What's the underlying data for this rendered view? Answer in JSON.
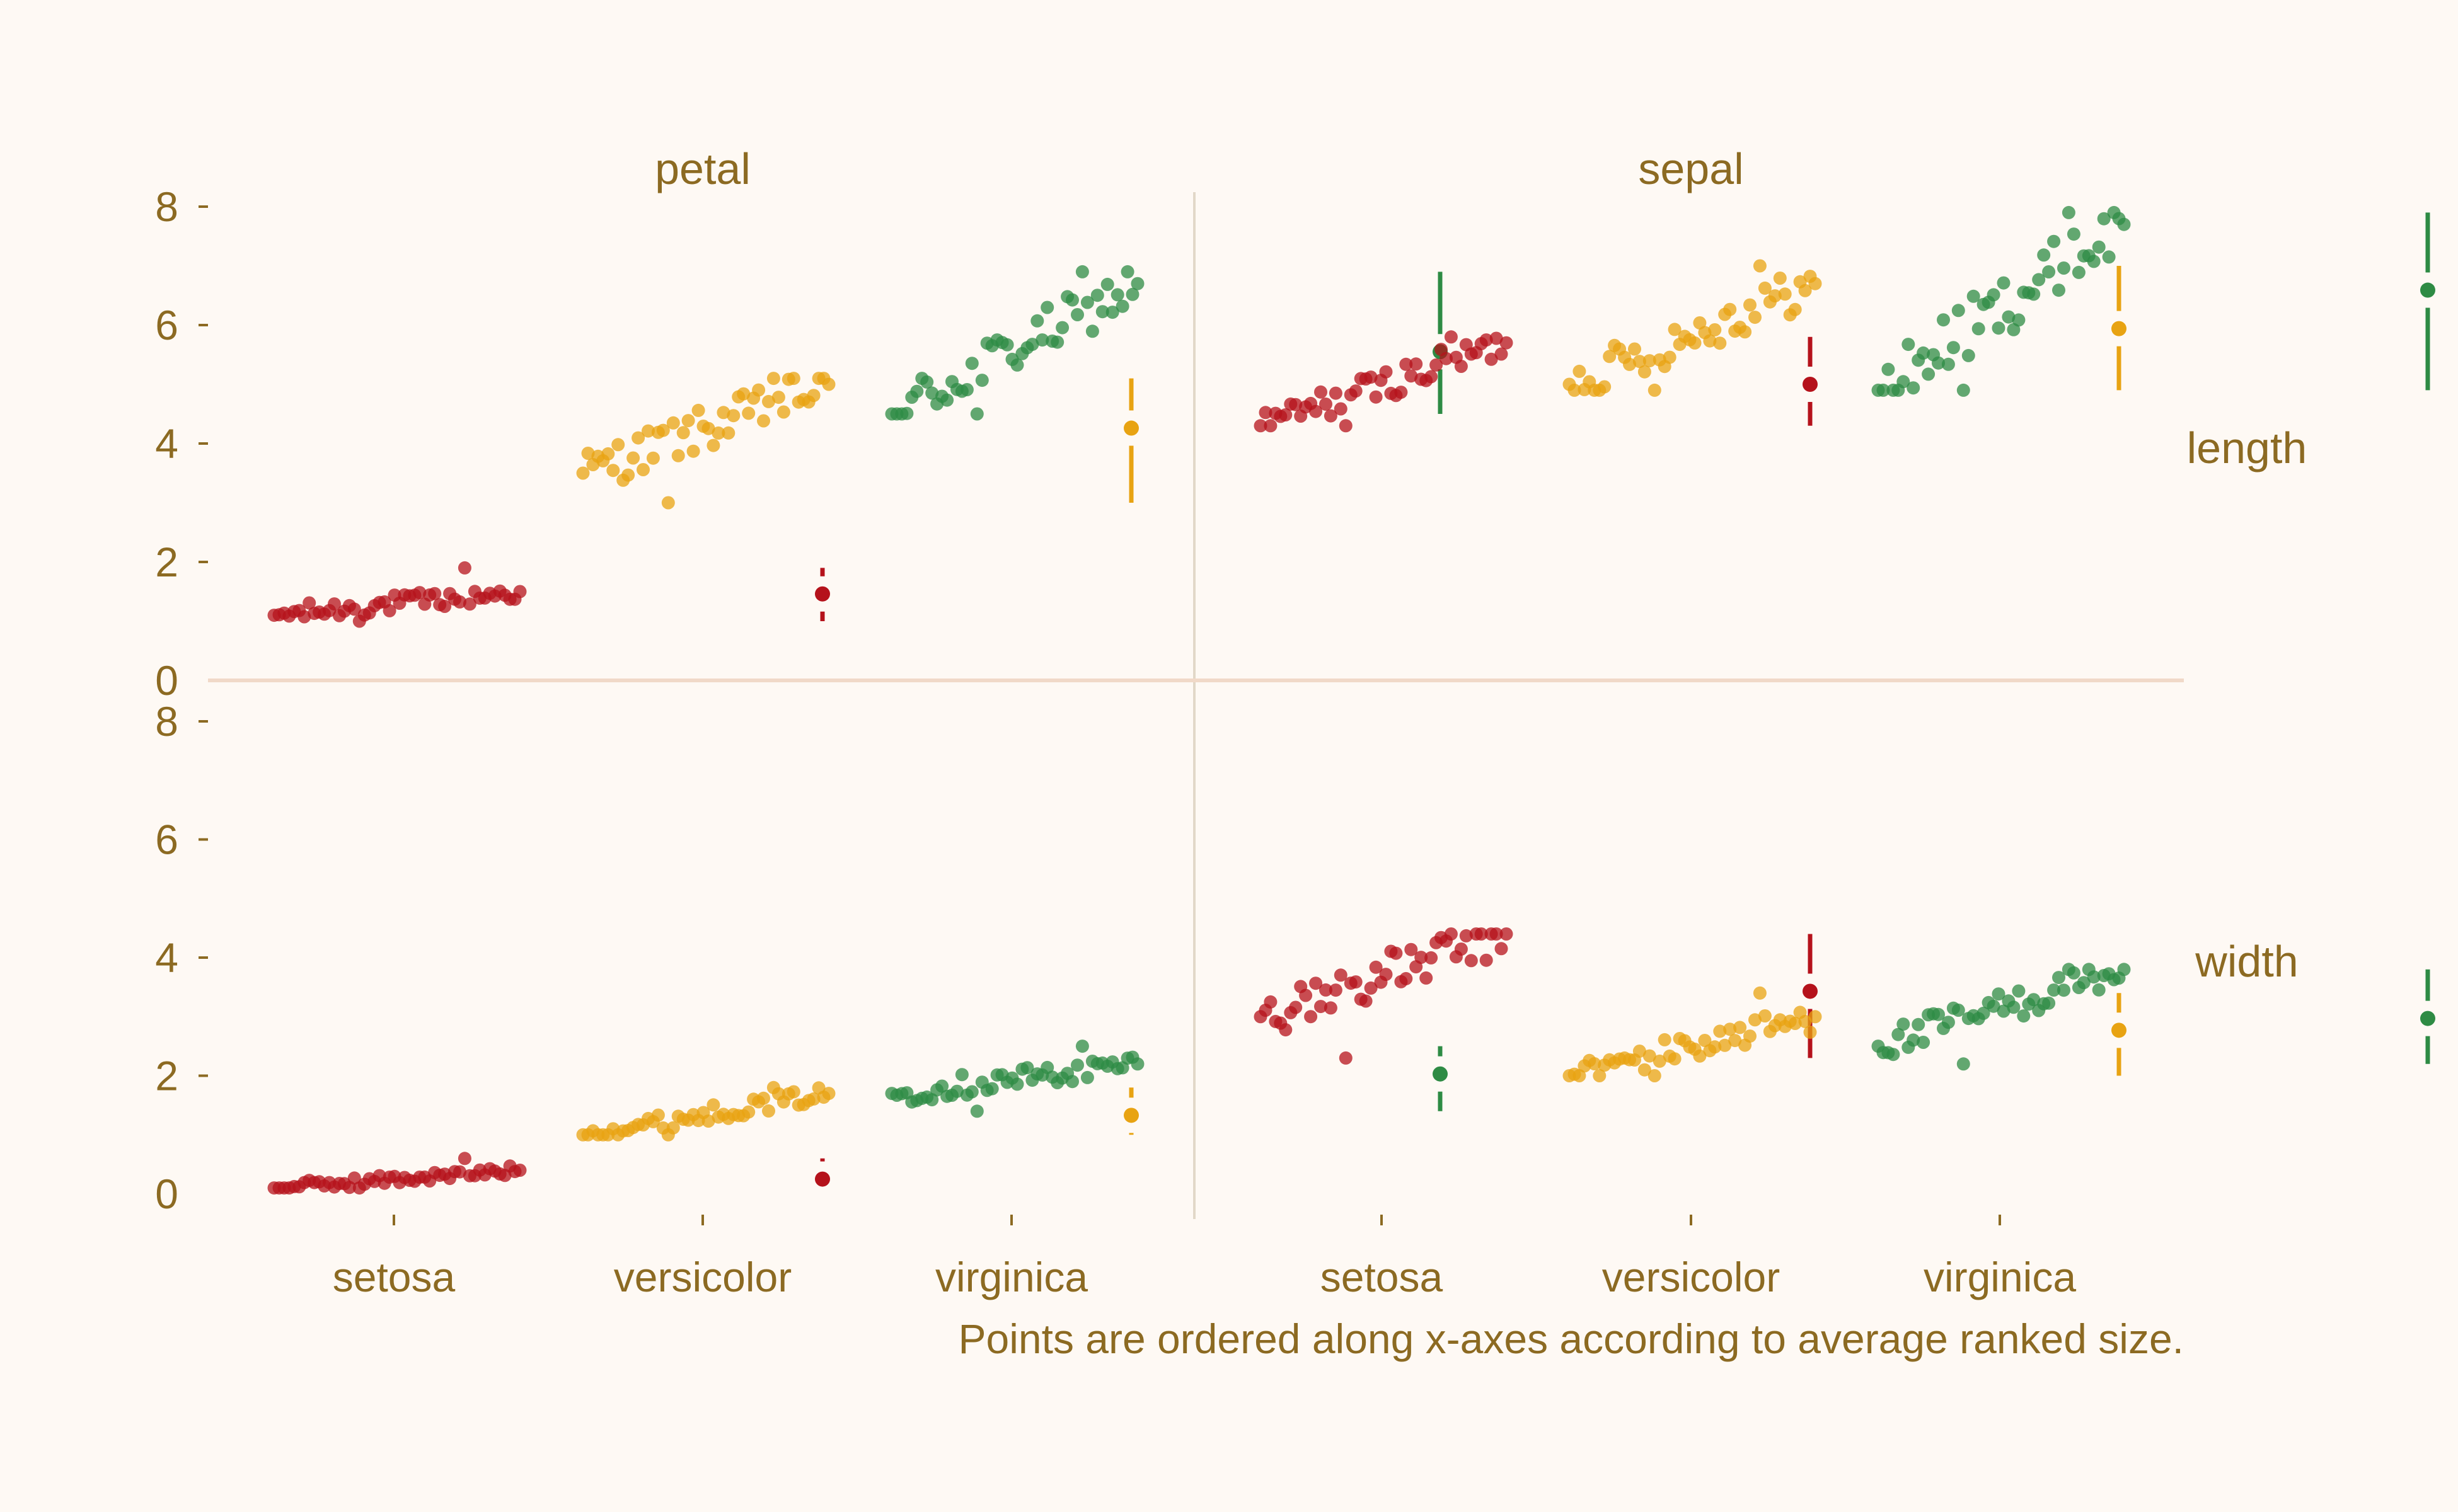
{
  "colors": {
    "background": "#fef9f4",
    "text": "#8c6a22",
    "divider": "#e2d8c8",
    "zero_line": "#f1d9c8",
    "setosa": "#b5121b",
    "versicolor": "#e8a312",
    "virginica": "#2e8b44"
  },
  "chart_data": {
    "type": "scatter",
    "description_style": "faceted tufte-style dot plot with range bars",
    "columns": [
      "petal",
      "sepal"
    ],
    "rows": [
      "length",
      "width"
    ],
    "species": [
      "setosa",
      "versicolor",
      "virginica"
    ],
    "y_ticks": [
      0,
      2,
      4,
      6,
      8
    ],
    "ylim": [
      0,
      8
    ],
    "caption": "Points are ordered along x-axes according to average ranked size.",
    "grid": false,
    "panels": [
      {
        "column": "petal",
        "row": "length",
        "groups": [
          {
            "species": "setosa",
            "min": 1.0,
            "mean": 1.46,
            "max": 1.9,
            "first": 1.1,
            "last": 1.5
          },
          {
            "species": "versicolor",
            "min": 3.0,
            "mean": 4.26,
            "max": 5.1,
            "first": 3.5,
            "last": 5.0
          },
          {
            "species": "virginica",
            "min": 4.5,
            "mean": 5.55,
            "max": 6.9,
            "first": 4.5,
            "last": 6.7
          }
        ]
      },
      {
        "column": "sepal",
        "row": "length",
        "groups": [
          {
            "species": "setosa",
            "min": 4.3,
            "mean": 5.0,
            "max": 5.8,
            "first": 4.3,
            "last": 5.7
          },
          {
            "species": "versicolor",
            "min": 4.9,
            "mean": 5.94,
            "max": 7.0,
            "first": 5.0,
            "last": 6.7
          },
          {
            "species": "virginica",
            "min": 4.9,
            "mean": 6.59,
            "max": 7.9,
            "first": 4.9,
            "last": 7.7
          }
        ]
      },
      {
        "column": "petal",
        "row": "width",
        "groups": [
          {
            "species": "setosa",
            "min": 0.1,
            "mean": 0.25,
            "max": 0.6,
            "first": 0.1,
            "last": 0.4
          },
          {
            "species": "versicolor",
            "min": 1.0,
            "mean": 1.33,
            "max": 1.8,
            "first": 1.0,
            "last": 1.7
          },
          {
            "species": "virginica",
            "min": 1.4,
            "mean": 2.03,
            "max": 2.5,
            "first": 1.7,
            "last": 2.2
          }
        ]
      },
      {
        "column": "sepal",
        "row": "width",
        "groups": [
          {
            "species": "setosa",
            "min": 2.3,
            "mean": 3.43,
            "max": 4.4,
            "first": 3.0,
            "last": 4.4
          },
          {
            "species": "versicolor",
            "min": 2.0,
            "mean": 2.77,
            "max": 3.4,
            "first": 2.0,
            "last": 3.0
          },
          {
            "species": "virginica",
            "min": 2.2,
            "mean": 2.97,
            "max": 3.8,
            "first": 2.5,
            "last": 3.8
          }
        ]
      }
    ]
  }
}
